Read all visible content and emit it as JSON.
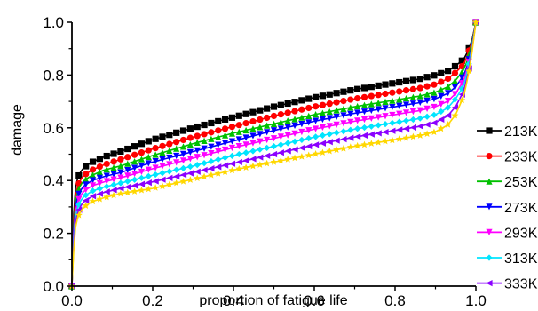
{
  "chart_data": {
    "type": "line",
    "title": "",
    "xlabel": "proportion of  fatigue life",
    "ylabel": "damage",
    "xlim": [
      0.0,
      1.0
    ],
    "ylim": [
      0.0,
      1.0
    ],
    "xticks": [
      0.0,
      0.2,
      0.4,
      0.6,
      0.8,
      1.0
    ],
    "yticks": [
      0.0,
      0.2,
      0.4,
      0.6,
      0.8,
      1.0
    ],
    "xtick_labels": [
      "0.0",
      "0.2",
      "0.4",
      "0.6",
      "0.8",
      "1.0"
    ],
    "ytick_labels": [
      "0.0",
      "0.2",
      "0.4",
      "0.6",
      "0.8",
      "1.0"
    ],
    "grid": false,
    "legend_position": "right",
    "x": [
      0.0,
      0.005,
      0.01,
      0.02,
      0.03,
      0.05,
      0.08,
      0.12,
      0.2,
      0.3,
      0.4,
      0.5,
      0.6,
      0.7,
      0.8,
      0.86,
      0.9,
      0.93,
      0.95,
      0.97,
      0.98,
      0.99,
      1.0
    ],
    "series": [
      {
        "name": "213K",
        "color": "#000000",
        "marker": "square",
        "values": [
          0.0,
          0.3,
          0.39,
          0.43,
          0.45,
          0.47,
          0.49,
          0.51,
          0.555,
          0.6,
          0.64,
          0.68,
          0.715,
          0.745,
          0.77,
          0.785,
          0.8,
          0.815,
          0.835,
          0.86,
          0.89,
          0.93,
          1.0
        ]
      },
      {
        "name": "233K",
        "color": "#ff0000",
        "marker": "circle",
        "values": [
          0.0,
          0.27,
          0.36,
          0.4,
          0.42,
          0.44,
          0.46,
          0.48,
          0.52,
          0.565,
          0.605,
          0.645,
          0.68,
          0.71,
          0.735,
          0.75,
          0.765,
          0.785,
          0.81,
          0.84,
          0.88,
          0.925,
          1.0
        ]
      },
      {
        "name": "253K",
        "color": "#00c000",
        "marker": "triangle-up",
        "values": [
          0.0,
          0.25,
          0.34,
          0.38,
          0.4,
          0.42,
          0.44,
          0.455,
          0.495,
          0.54,
          0.58,
          0.615,
          0.65,
          0.68,
          0.705,
          0.72,
          0.735,
          0.755,
          0.78,
          0.82,
          0.86,
          0.92,
          1.0
        ]
      },
      {
        "name": "273K",
        "color": "#0000ff",
        "marker": "triangle-down",
        "values": [
          0.0,
          0.23,
          0.32,
          0.36,
          0.38,
          0.4,
          0.415,
          0.43,
          0.47,
          0.51,
          0.55,
          0.59,
          0.625,
          0.655,
          0.68,
          0.695,
          0.71,
          0.73,
          0.755,
          0.8,
          0.84,
          0.91,
          1.0
        ]
      },
      {
        "name": "293K",
        "color": "#ff00ff",
        "marker": "triangle-down",
        "values": [
          0.0,
          0.21,
          0.3,
          0.34,
          0.36,
          0.38,
          0.395,
          0.41,
          0.445,
          0.485,
          0.525,
          0.56,
          0.595,
          0.625,
          0.65,
          0.665,
          0.68,
          0.7,
          0.73,
          0.78,
          0.83,
          0.9,
          1.0
        ]
      },
      {
        "name": "313K",
        "color": "#00e5ff",
        "marker": "diamond",
        "values": [
          0.0,
          0.19,
          0.28,
          0.32,
          0.34,
          0.36,
          0.375,
          0.39,
          0.42,
          0.455,
          0.495,
          0.53,
          0.565,
          0.595,
          0.62,
          0.635,
          0.65,
          0.675,
          0.71,
          0.76,
          0.82,
          0.9,
          1.0
        ]
      },
      {
        "name": "333K",
        "color": "#8b00ff",
        "marker": "triangle-left",
        "values": [
          0.0,
          0.17,
          0.26,
          0.3,
          0.32,
          0.34,
          0.355,
          0.37,
          0.395,
          0.43,
          0.465,
          0.5,
          0.535,
          0.565,
          0.59,
          0.605,
          0.62,
          0.645,
          0.68,
          0.74,
          0.8,
          0.89,
          1.0
        ]
      },
      {
        "name": "",
        "color": "#ffd700",
        "marker": "star",
        "values": [
          0.0,
          0.15,
          0.24,
          0.28,
          0.3,
          0.32,
          0.335,
          0.35,
          0.37,
          0.405,
          0.44,
          0.47,
          0.5,
          0.53,
          0.555,
          0.57,
          0.585,
          0.61,
          0.65,
          0.72,
          0.79,
          0.88,
          1.0
        ]
      }
    ],
    "legend": [
      {
        "label": "213K",
        "color": "#000000",
        "marker": "square"
      },
      {
        "label": "233K",
        "color": "#ff0000",
        "marker": "circle"
      },
      {
        "label": "253K",
        "color": "#00c000",
        "marker": "triangle-up"
      },
      {
        "label": "273K",
        "color": "#0000ff",
        "marker": "triangle-down"
      },
      {
        "label": "293K",
        "color": "#ff00ff",
        "marker": "triangle-down"
      },
      {
        "label": "313K",
        "color": "#00e5ff",
        "marker": "diamond"
      },
      {
        "label": "333K",
        "color": "#8b00ff",
        "marker": "triangle-left"
      }
    ]
  }
}
